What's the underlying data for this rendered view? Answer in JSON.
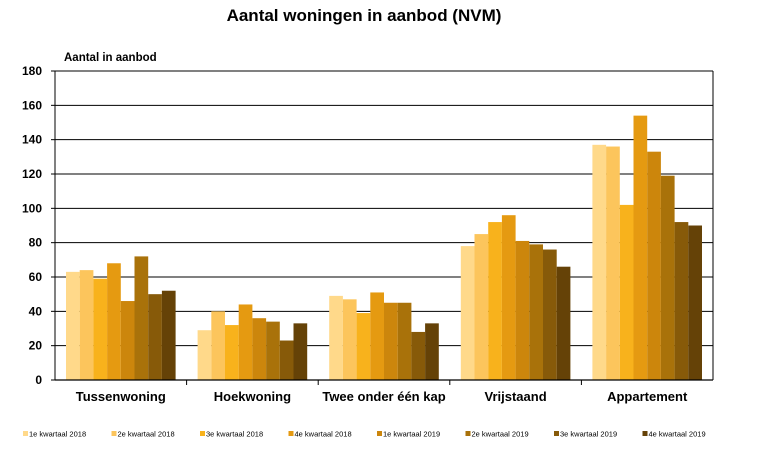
{
  "chart_data": {
    "type": "bar",
    "title": "Aantal woningen in aanbod (NVM)",
    "ylabel": "Aantal in aanbod",
    "xlabel": "",
    "ylim": [
      0,
      180
    ],
    "yticks": [
      0,
      20,
      40,
      60,
      80,
      100,
      120,
      140,
      160,
      180
    ],
    "grid": true,
    "legend_position": "bottom",
    "categories": [
      "Tussenwoning",
      "Hoekwoning",
      "Twee onder één kap",
      "Vrijstaand",
      "Appartement"
    ],
    "series": [
      {
        "name": "1e kwartaal 2018",
        "color": "#FFD98A",
        "values": [
          63,
          29,
          49,
          78,
          137
        ]
      },
      {
        "name": "2e kwartaal 2018",
        "color": "#FCC55C",
        "values": [
          64,
          40,
          47,
          85,
          136
        ]
      },
      {
        "name": "3e kwartaal 2018",
        "color": "#F8B21C",
        "values": [
          59,
          32,
          39,
          92,
          102
        ]
      },
      {
        "name": "4e kwartaal 2018",
        "color": "#E59A11",
        "values": [
          68,
          44,
          51,
          96,
          154
        ]
      },
      {
        "name": "1e kwartaal 2019",
        "color": "#CC860C",
        "values": [
          46,
          36,
          45,
          81,
          133
        ]
      },
      {
        "name": "2e kwartaal 2019",
        "color": "#A9720A",
        "values": [
          72,
          34,
          45,
          79,
          119
        ]
      },
      {
        "name": "3e kwartaal 2019",
        "color": "#875A09",
        "values": [
          50,
          23,
          28,
          76,
          92
        ]
      },
      {
        "name": "4e kwartaal 2019",
        "color": "#654207",
        "values": [
          52,
          33,
          33,
          66,
          90
        ]
      }
    ]
  }
}
